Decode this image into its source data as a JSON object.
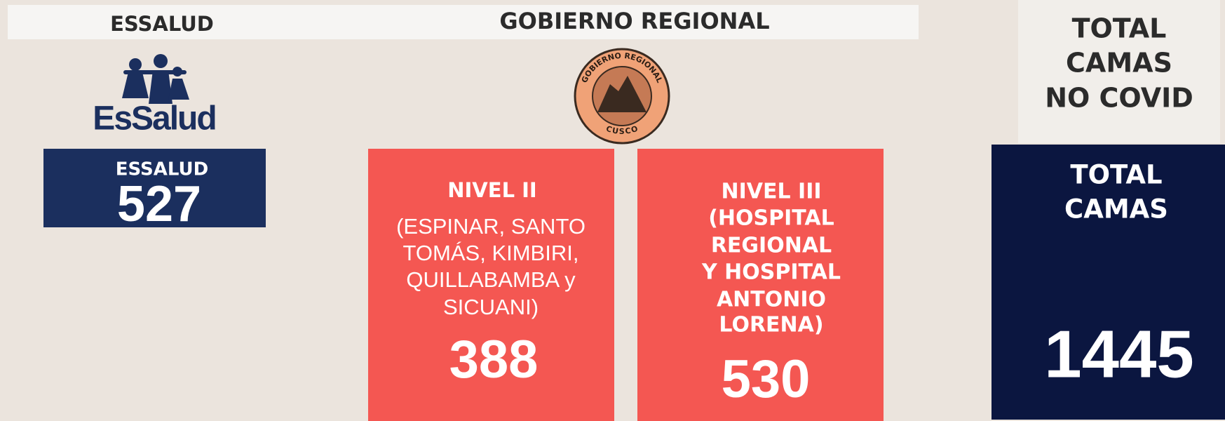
{
  "header": {
    "essalud": "ESSALUD",
    "gobierno": "GOBIERNO REGIONAL"
  },
  "logos": {
    "essalud": "EsSalud",
    "gobierno_top": "GOBIERNO REGIONAL",
    "gobierno_bottom": "CUSCO"
  },
  "total_header": [
    "TOTAL",
    "CAMAS",
    "NO COVID"
  ],
  "essalud_card": {
    "label": "ESSALUD",
    "value": "527"
  },
  "nivel2_card": {
    "title": "NIVEL II",
    "description": [
      "(ESPINAR, SANTO",
      "TOMÁS, KIMBIRI,",
      "QUILLABAMBA y",
      "SICUANI)"
    ],
    "value": "388"
  },
  "nivel3_card": {
    "lines": [
      "NIVEL III",
      "(HOSPITAL",
      "REGIONAL",
      "Y HOSPITAL",
      "ANTONIO",
      "LORENA)"
    ],
    "value": "530"
  },
  "total_card": {
    "lines": [
      "TOTAL",
      "CAMAS"
    ],
    "value": "1445"
  }
}
